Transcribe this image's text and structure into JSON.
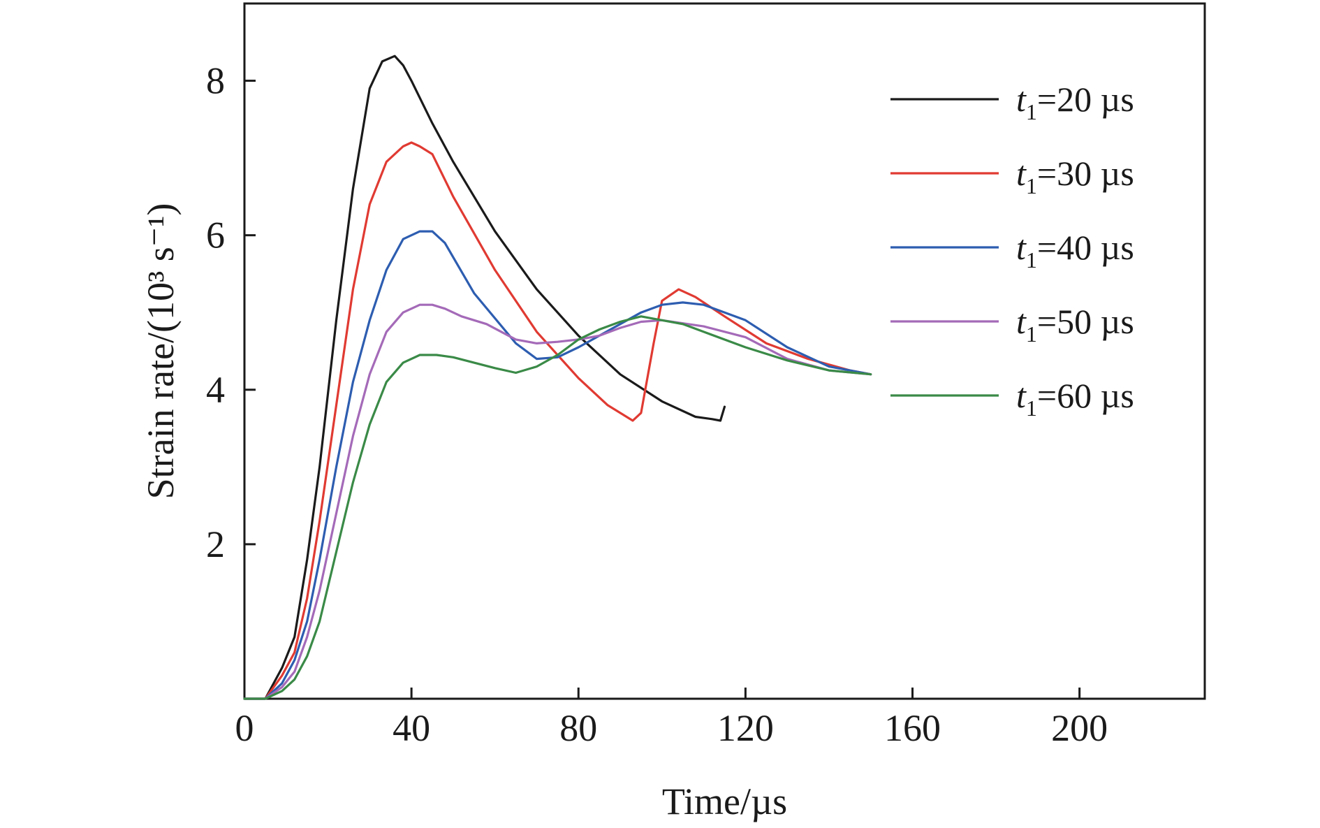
{
  "chart_data": {
    "type": "line",
    "title": "",
    "xlabel": "Time/µs",
    "ylabel": "Strain rate/(10³ s⁻¹)",
    "xlim": [
      0,
      230
    ],
    "ylim": [
      0,
      9
    ],
    "x_ticks": [
      0,
      40,
      80,
      120,
      160,
      200
    ],
    "x_tick_labels": [
      "0",
      "40",
      "80",
      "120",
      "160",
      "200"
    ],
    "y_ticks": [
      2,
      4,
      6,
      8
    ],
    "y_tick_labels": [
      "2",
      "4",
      "6",
      "8"
    ],
    "grid": false,
    "legend_position": "top-right",
    "series": [
      {
        "name": "t1=20 µs",
        "legend_var": "t",
        "legend_sub": "1",
        "legend_rest": "=20 µs",
        "color": "#1a1a1a",
        "x": [
          0,
          5,
          9,
          12,
          15,
          18,
          22,
          26,
          30,
          33,
          36,
          38,
          40,
          45,
          50,
          60,
          70,
          80,
          90,
          100,
          108,
          112,
          114,
          115
        ],
        "y": [
          0,
          0,
          0.4,
          0.8,
          1.8,
          3.0,
          4.9,
          6.6,
          7.9,
          8.25,
          8.32,
          8.2,
          8.0,
          7.45,
          6.95,
          6.05,
          5.3,
          4.7,
          4.2,
          3.85,
          3.65,
          3.62,
          3.6,
          3.78
        ]
      },
      {
        "name": "t1=30 µs",
        "legend_var": "t",
        "legend_sub": "1",
        "legend_rest": "=30 µs",
        "color": "#e03a32",
        "x": [
          0,
          5,
          9,
          12,
          15,
          18,
          22,
          26,
          30,
          34,
          38,
          40,
          42,
          45,
          50,
          60,
          70,
          80,
          87,
          93,
          95,
          98,
          100,
          104,
          108,
          115,
          125,
          135,
          145,
          150
        ],
        "y": [
          0,
          0,
          0.3,
          0.6,
          1.3,
          2.3,
          3.8,
          5.3,
          6.4,
          6.95,
          7.15,
          7.2,
          7.15,
          7.05,
          6.5,
          5.55,
          4.75,
          4.15,
          3.8,
          3.6,
          3.7,
          4.6,
          5.15,
          5.3,
          5.2,
          4.95,
          4.6,
          4.4,
          4.25,
          4.2
        ]
      },
      {
        "name": "t1=40 µs",
        "legend_var": "t",
        "legend_sub": "1",
        "legend_rest": "=40 µs",
        "color": "#2d5db0",
        "x": [
          0,
          5,
          9,
          12,
          15,
          18,
          22,
          26,
          30,
          34,
          38,
          42,
          45,
          48,
          55,
          65,
          70,
          75,
          80,
          85,
          90,
          95,
          100,
          105,
          110,
          120,
          130,
          140,
          145,
          150
        ],
        "y": [
          0,
          0,
          0.2,
          0.5,
          1.0,
          1.8,
          3.0,
          4.1,
          4.9,
          5.55,
          5.95,
          6.05,
          6.05,
          5.9,
          5.25,
          4.6,
          4.4,
          4.42,
          4.55,
          4.7,
          4.85,
          5.0,
          5.1,
          5.13,
          5.1,
          4.9,
          4.55,
          4.3,
          4.25,
          4.2
        ]
      },
      {
        "name": "t1=50 µs",
        "legend_var": "t",
        "legend_sub": "1",
        "legend_rest": "=50 µs",
        "color": "#a46ab8",
        "x": [
          0,
          5,
          9,
          12,
          15,
          18,
          22,
          26,
          30,
          34,
          38,
          42,
          45,
          48,
          52,
          58,
          65,
          70,
          75,
          80,
          85,
          90,
          95,
          100,
          110,
          120,
          130,
          140,
          150
        ],
        "y": [
          0,
          0,
          0.15,
          0.35,
          0.8,
          1.4,
          2.4,
          3.4,
          4.2,
          4.75,
          5.0,
          5.1,
          5.1,
          5.05,
          4.95,
          4.85,
          4.65,
          4.6,
          4.62,
          4.65,
          4.7,
          4.8,
          4.88,
          4.9,
          4.82,
          4.68,
          4.4,
          4.25,
          4.2
        ]
      },
      {
        "name": "t1=60 µs",
        "legend_var": "t",
        "legend_sub": "1",
        "legend_rest": "=60 µs",
        "color": "#3a8a47",
        "x": [
          0,
          5,
          9,
          12,
          15,
          18,
          22,
          26,
          30,
          34,
          38,
          42,
          46,
          50,
          55,
          60,
          65,
          70,
          75,
          80,
          85,
          90,
          95,
          100,
          105,
          110,
          120,
          130,
          140,
          150
        ],
        "y": [
          0,
          0,
          0.1,
          0.25,
          0.55,
          1.0,
          1.9,
          2.8,
          3.55,
          4.1,
          4.35,
          4.45,
          4.45,
          4.42,
          4.35,
          4.28,
          4.22,
          4.3,
          4.45,
          4.65,
          4.78,
          4.88,
          4.95,
          4.9,
          4.85,
          4.75,
          4.55,
          4.38,
          4.25,
          4.2
        ]
      }
    ]
  }
}
